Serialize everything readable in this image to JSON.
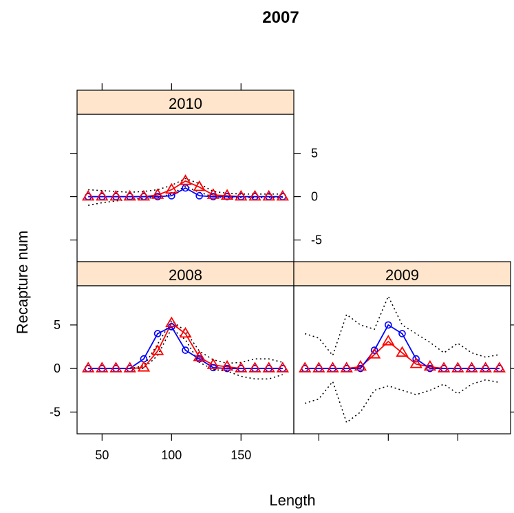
{
  "chart_data": {
    "type": "line",
    "title": "2007",
    "xlabel": "Length",
    "ylabel": "Recapture num",
    "xlim": [
      32,
      188
    ],
    "ylim": [
      -7.5,
      9.5
    ],
    "x_ticks": [
      50,
      100,
      150
    ],
    "y_ticks": [
      -5,
      0,
      5
    ],
    "colors": {
      "observed": "#0000ff",
      "predicted": "#ff0000",
      "interval": "#000000",
      "strip": "#ffe5cc"
    },
    "panels": [
      {
        "label": "2010",
        "x": [
          40,
          50,
          60,
          70,
          80,
          90,
          100,
          110,
          120,
          130,
          140,
          150,
          160,
          170,
          180
        ],
        "series": [
          {
            "role": "observed",
            "marker": "circle",
            "values": [
              0,
              0,
              0,
              0,
              0,
              0,
              0.1,
              1.0,
              0.1,
              0,
              0,
              0,
              0,
              0,
              0
            ]
          },
          {
            "role": "predicted",
            "marker": "triangle",
            "values": [
              0,
              0,
              0,
              0,
              0,
              0.2,
              0.8,
              1.8,
              1.1,
              0.2,
              0.1,
              0,
              0,
              0,
              0
            ]
          },
          {
            "role": "interval-upper",
            "values": [
              0.8,
              0.7,
              0.6,
              0.5,
              0.6,
              0.8,
              1.3,
              2.1,
              1.5,
              0.6,
              0.4,
              0.3,
              0.3,
              0.3,
              0.3
            ]
          },
          {
            "role": "interval-lower",
            "values": [
              -1.0,
              -0.7,
              -0.5,
              -0.3,
              -0.2,
              -0.1,
              0.3,
              1.2,
              0.5,
              0,
              -0.1,
              -0.1,
              -0.1,
              -0.1,
              -0.1
            ]
          }
        ]
      },
      {
        "label": "2008",
        "x": [
          40,
          50,
          60,
          70,
          80,
          90,
          100,
          110,
          120,
          130,
          140,
          150,
          160,
          170,
          180
        ],
        "series": [
          {
            "role": "observed",
            "marker": "circle",
            "values": [
              0,
              0,
              0,
              0,
              1.1,
              4.0,
              4.8,
              2.1,
              1.1,
              0.1,
              0,
              0,
              0,
              0,
              0
            ]
          },
          {
            "role": "predicted",
            "marker": "triangle",
            "values": [
              0,
              0,
              0,
              0,
              0.1,
              2.0,
              5.2,
              4.0,
              1.3,
              0.4,
              0.2,
              0,
              0,
              0,
              0
            ]
          },
          {
            "role": "interval-upper",
            "values": [
              0,
              0,
              0,
              0,
              0.3,
              2.8,
              5.5,
              4.3,
              2.0,
              1.0,
              0.6,
              0.7,
              1.1,
              1.1,
              0.7
            ]
          },
          {
            "role": "interval-lower",
            "values": [
              0,
              0,
              0,
              0,
              0,
              1.5,
              4.6,
              3.3,
              0.7,
              -0.1,
              -0.3,
              -0.9,
              -1.2,
              -1.2,
              -0.7
            ]
          }
        ]
      },
      {
        "label": "2009",
        "x": [
          40,
          50,
          60,
          70,
          80,
          90,
          100,
          110,
          120,
          130,
          140,
          150,
          160,
          170,
          180
        ],
        "series": [
          {
            "role": "observed",
            "marker": "circle",
            "values": [
              0,
              0,
              0,
              0,
              0,
              2.1,
              5.0,
              4.0,
              1.1,
              0,
              0,
              0,
              0,
              0,
              0
            ]
          },
          {
            "role": "predicted",
            "marker": "triangle",
            "values": [
              0,
              0,
              0,
              0,
              0.2,
              1.6,
              3.1,
              1.8,
              0.5,
              0.2,
              0,
              0,
              0,
              0,
              0
            ]
          },
          {
            "role": "interval-upper",
            "values": [
              4.0,
              3.5,
              1.5,
              6.2,
              5.0,
              4.5,
              8.3,
              5.0,
              4.0,
              3.0,
              1.8,
              2.9,
              1.8,
              1.3,
              1.6
            ]
          },
          {
            "role": "interval-lower",
            "values": [
              -4.0,
              -3.5,
              -1.5,
              -6.2,
              -5.0,
              -2.5,
              -2.0,
              -2.5,
              -3.0,
              -2.5,
              -1.8,
              -2.9,
              -1.8,
              -1.3,
              -1.6
            ]
          }
        ]
      }
    ]
  }
}
